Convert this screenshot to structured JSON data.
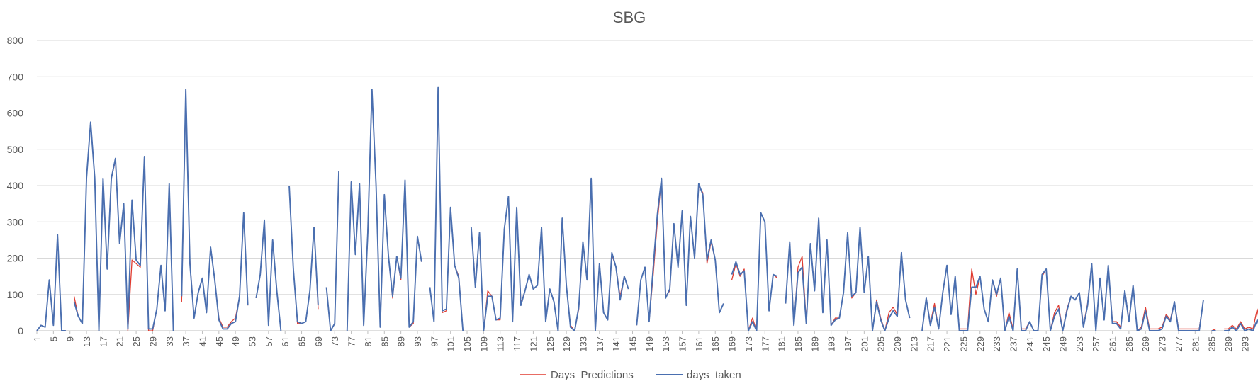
{
  "chart_data": {
    "type": "line",
    "title": "SBG",
    "xlabel": "",
    "ylabel": "",
    "ylim": [
      0,
      800
    ],
    "yticks": [
      0,
      100,
      200,
      300,
      400,
      500,
      600,
      700,
      800
    ],
    "xlim": [
      1,
      295
    ],
    "xtick_start": 1,
    "xtick_step": 4,
    "grid": true,
    "legend_position": "bottom-center",
    "series": [
      {
        "name": "Days_Predictions",
        "color": "#e03c31",
        "values": [
          0,
          15,
          10,
          140,
          15,
          265,
          0,
          0,
          null,
          95,
          40,
          20,
          420,
          575,
          420,
          0,
          420,
          170,
          420,
          470,
          240,
          350,
          0,
          195,
          185,
          175,
          480,
          0,
          0,
          60,
          180,
          55,
          405,
          0,
          null,
          80,
          665,
          190,
          35,
          105,
          145,
          50,
          230,
          140,
          35,
          10,
          10,
          25,
          35,
          95,
          325,
          70,
          null,
          90,
          155,
          305,
          15,
          250,
          110,
          0,
          null,
          400,
          170,
          20,
          20,
          25,
          110,
          285,
          60,
          null,
          120,
          0,
          20,
          440,
          null,
          0,
          410,
          210,
          405,
          15,
          270,
          665,
          400,
          10,
          375,
          205,
          90,
          205,
          140,
          415,
          10,
          20,
          260,
          190,
          null,
          120,
          25,
          670,
          50,
          55,
          340,
          180,
          150,
          0,
          null,
          285,
          125,
          270,
          0,
          110,
          95,
          30,
          30,
          280,
          370,
          25,
          340,
          75,
          110,
          155,
          115,
          125,
          285,
          30,
          115,
          80,
          0,
          310,
          125,
          15,
          0,
          60,
          245,
          140,
          420,
          0,
          185,
          50,
          30,
          210,
          175,
          95,
          150,
          115,
          null,
          15,
          140,
          175,
          25,
          155,
          300,
          420,
          95,
          110,
          295,
          175,
          330,
          70,
          315,
          200,
          400,
          380,
          185,
          245,
          195,
          50,
          75,
          null,
          140,
          185,
          150,
          170,
          0,
          35,
          0,
          325,
          300,
          55,
          155,
          145,
          null,
          75,
          245,
          15,
          175,
          205,
          25,
          240,
          115,
          310,
          50,
          250,
          15,
          35,
          35,
          105,
          270,
          90,
          105,
          285,
          105,
          205,
          0,
          85,
          35,
          0,
          50,
          65,
          45,
          215,
          85,
          35,
          null,
          null,
          0,
          90,
          20,
          75,
          5,
          105,
          180,
          45,
          150,
          5,
          5,
          5,
          170,
          100,
          150,
          60,
          25,
          140,
          95,
          145,
          0,
          50,
          5,
          170,
          5,
          5,
          25,
          0,
          0,
          150,
          170,
          0,
          50,
          70,
          0,
          60,
          95,
          85,
          105,
          15,
          75,
          185,
          0,
          145,
          35,
          180,
          25,
          25,
          10,
          110,
          30,
          125,
          0,
          10,
          65,
          5,
          5,
          5,
          10,
          45,
          30,
          80,
          5,
          5,
          5,
          5,
          5,
          5,
          85,
          null,
          0,
          5,
          null,
          5,
          5,
          15,
          5,
          25,
          5,
          10,
          5,
          60,
          0
        ],
        "style": "solid"
      },
      {
        "name": "days_taken",
        "color": "#4a6fb0",
        "values": [
          0,
          15,
          10,
          140,
          15,
          265,
          0,
          0,
          null,
          80,
          40,
          20,
          420,
          575,
          420,
          0,
          420,
          170,
          420,
          475,
          240,
          350,
          5,
          360,
          195,
          180,
          480,
          5,
          5,
          60,
          180,
          55,
          405,
          0,
          null,
          95,
          665,
          185,
          35,
          105,
          145,
          50,
          230,
          140,
          30,
          5,
          5,
          20,
          25,
          95,
          325,
          70,
          null,
          90,
          155,
          305,
          15,
          250,
          110,
          0,
          null,
          400,
          170,
          25,
          20,
          25,
          110,
          285,
          70,
          null,
          120,
          0,
          20,
          440,
          null,
          0,
          410,
          210,
          405,
          15,
          270,
          665,
          400,
          10,
          375,
          205,
          95,
          205,
          145,
          415,
          10,
          25,
          260,
          190,
          null,
          120,
          25,
          670,
          55,
          60,
          340,
          180,
          145,
          0,
          null,
          285,
          120,
          270,
          0,
          95,
          95,
          30,
          35,
          280,
          370,
          25,
          340,
          70,
          110,
          155,
          115,
          125,
          285,
          25,
          115,
          80,
          0,
          310,
          125,
          10,
          0,
          65,
          245,
          140,
          420,
          0,
          185,
          50,
          30,
          215,
          175,
          85,
          150,
          115,
          null,
          15,
          140,
          175,
          25,
          175,
          320,
          420,
          90,
          115,
          295,
          175,
          330,
          70,
          315,
          200,
          405,
          375,
          195,
          250,
          195,
          50,
          75,
          null,
          155,
          190,
          155,
          165,
          0,
          25,
          0,
          325,
          300,
          55,
          155,
          150,
          null,
          75,
          245,
          15,
          160,
          175,
          20,
          240,
          110,
          310,
          50,
          250,
          15,
          30,
          35,
          105,
          270,
          95,
          105,
          285,
          105,
          205,
          0,
          80,
          30,
          0,
          35,
          55,
          40,
          215,
          85,
          35,
          null,
          null,
          0,
          90,
          15,
          65,
          5,
          105,
          180,
          45,
          150,
          0,
          0,
          0,
          120,
          120,
          150,
          60,
          25,
          140,
          100,
          145,
          0,
          40,
          0,
          170,
          0,
          0,
          25,
          0,
          0,
          155,
          170,
          0,
          40,
          60,
          0,
          55,
          95,
          85,
          105,
          10,
          70,
          185,
          0,
          145,
          30,
          180,
          20,
          20,
          5,
          110,
          25,
          125,
          0,
          5,
          55,
          0,
          0,
          0,
          5,
          40,
          25,
          80,
          0,
          0,
          0,
          0,
          0,
          0,
          85,
          null,
          0,
          0,
          null,
          0,
          0,
          10,
          0,
          20,
          0,
          5,
          0,
          30,
          0
        ],
        "style": "solid"
      }
    ]
  }
}
